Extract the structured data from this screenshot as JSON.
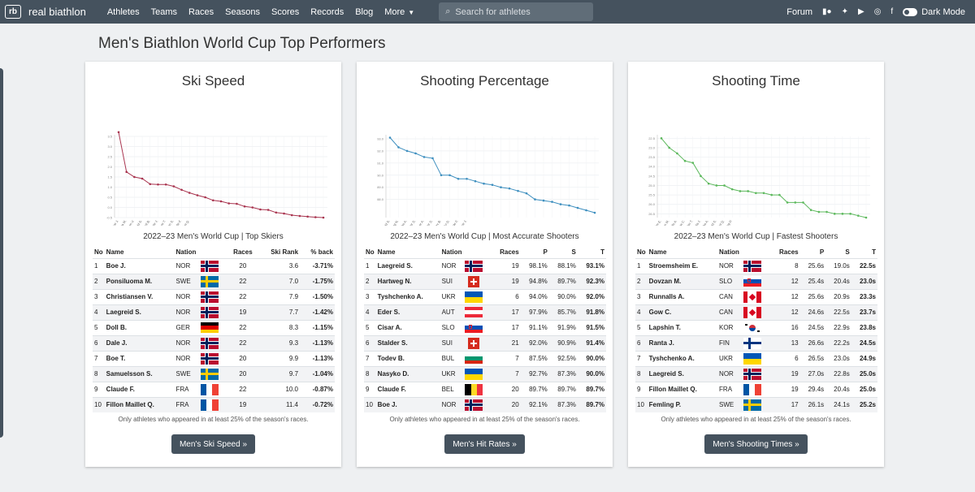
{
  "nav": {
    "logo": "rb",
    "brand": "real biathlon",
    "links": [
      "Athletes",
      "Teams",
      "Races",
      "Seasons",
      "Scores",
      "Records",
      "Blog"
    ],
    "more": "More",
    "search_placeholder": "Search for athletes",
    "forum": "Forum",
    "dark_mode": "Dark Mode"
  },
  "page_title": "Men's Biathlon World Cup Top Performers",
  "colors": {
    "nav": "#45525e",
    "ski": "#a8334e",
    "shoot": "#3e8fbf",
    "time": "#5cb85c"
  },
  "cards": [
    {
      "title": "Ski Speed",
      "table_title": "2022–23 Men's World Cup | Top Skiers",
      "columns": [
        "No",
        "Name",
        "Nation",
        "Races",
        "Ski Rank",
        "% back"
      ],
      "rows": [
        [
          "1",
          "Boe J.",
          "NOR",
          "20",
          "3.6",
          "-3.71%"
        ],
        [
          "2",
          "Ponsiluoma M.",
          "SWE",
          "22",
          "7.0",
          "-1.75%"
        ],
        [
          "3",
          "Christiansen V.",
          "NOR",
          "22",
          "7.9",
          "-1.50%"
        ],
        [
          "4",
          "Laegreid S.",
          "NOR",
          "19",
          "7.7",
          "-1.42%"
        ],
        [
          "5",
          "Doll B.",
          "GER",
          "22",
          "8.3",
          "-1.15%"
        ],
        [
          "6",
          "Dale J.",
          "NOR",
          "22",
          "9.3",
          "-1.13%"
        ],
        [
          "7",
          "Boe T.",
          "NOR",
          "20",
          "9.9",
          "-1.13%"
        ],
        [
          "8",
          "Samuelsson S.",
          "SWE",
          "20",
          "9.7",
          "-1.04%"
        ],
        [
          "9",
          "Claude F.",
          "FRA",
          "22",
          "10.0",
          "-0.87%"
        ],
        [
          "10",
          "Fillon Maillet Q.",
          "FRA",
          "19",
          "11.4",
          "-0.72%"
        ]
      ],
      "note": "Only athletes who appeared in at least 25% of the season's races.",
      "button": "Men's Ski Speed »",
      "chart_data": {
        "type": "line",
        "y_ticks": [
          "3.5",
          "3.0",
          "2.5",
          "2.0",
          "1.5",
          "1.0",
          "0.5",
          "0.0",
          "-0.5"
        ],
        "ylim": [
          -0.5,
          3.5
        ],
        "values": [
          3.71,
          1.75,
          1.5,
          1.42,
          1.15,
          1.13,
          1.13,
          1.04,
          0.87,
          0.72,
          0.6,
          0.5,
          0.35,
          0.3,
          0.2,
          0.18,
          0.05,
          0.0,
          -0.1,
          -0.12,
          -0.25,
          -0.3,
          -0.38,
          -0.42,
          -0.45,
          -0.48,
          -0.5
        ],
        "x_labels": [
          "Boe J.",
          "Ponsiluoma M.",
          "Christiansen V.",
          "Laegreid S.",
          "Doll B.",
          "Dale J.",
          "Boe T.",
          "Samuelsson S.",
          "Claude F.",
          "Fillon Maillet Q."
        ]
      }
    },
    {
      "title": "Shooting Percentage",
      "table_title": "2022–23 Men's World Cup | Most Accurate Shooters",
      "columns": [
        "No",
        "Name",
        "Nation",
        "Races",
        "P",
        "S",
        "T"
      ],
      "rows": [
        [
          "1",
          "Laegreid S.",
          "NOR",
          "19",
          "98.1%",
          "88.1%",
          "93.1%"
        ],
        [
          "2",
          "Hartweg N.",
          "SUI",
          "19",
          "94.8%",
          "89.7%",
          "92.3%"
        ],
        [
          "3",
          "Tyshchenko A.",
          "UKR",
          "6",
          "94.0%",
          "90.0%",
          "92.0%"
        ],
        [
          "4",
          "Eder S.",
          "AUT",
          "17",
          "97.9%",
          "85.7%",
          "91.8%"
        ],
        [
          "5",
          "Cisar A.",
          "SLO",
          "17",
          "91.1%",
          "91.9%",
          "91.5%"
        ],
        [
          "6",
          "Stalder S.",
          "SUI",
          "21",
          "92.0%",
          "90.9%",
          "91.4%"
        ],
        [
          "7",
          "Todev B.",
          "BUL",
          "7",
          "87.5%",
          "92.5%",
          "90.0%"
        ],
        [
          "8",
          "Nasyko D.",
          "UKR",
          "7",
          "92.7%",
          "87.3%",
          "90.0%"
        ],
        [
          "9",
          "Claude F.",
          "BEL",
          "20",
          "89.7%",
          "89.7%",
          "89.7%"
        ],
        [
          "10",
          "Boe J.",
          "NOR",
          "20",
          "92.1%",
          "87.3%",
          "89.7%"
        ]
      ],
      "note": "Only athletes who appeared in at least 25% of the season's races.",
      "button": "Men's Hit Rates »",
      "chart_data": {
        "type": "line",
        "y_ticks": [
          "93.0",
          "92.0",
          "91.0",
          "90.0",
          "89.0",
          "88.0"
        ],
        "ylim": [
          86.5,
          93.2
        ],
        "values": [
          93.1,
          92.3,
          92.0,
          91.8,
          91.5,
          91.4,
          90.0,
          90.0,
          89.7,
          89.7,
          89.5,
          89.3,
          89.2,
          89.0,
          88.9,
          88.7,
          88.5,
          88.0,
          87.9,
          87.8,
          87.6,
          87.5,
          87.3,
          87.1,
          86.9
        ],
        "x_labels": [
          "Laegreid S.",
          "Hartweg N.",
          "Tyshchenko A.",
          "Eder S.",
          "Cisar A.",
          "Stalder S.",
          "Todev B.",
          "Nasyko D.",
          "Claude F.",
          "Boe J."
        ]
      }
    },
    {
      "title": "Shooting Time",
      "table_title": "2022–23 Men's World Cup | Fastest Shooters",
      "columns": [
        "No",
        "Name",
        "Nation",
        "Races",
        "P",
        "S",
        "T"
      ],
      "rows": [
        [
          "1",
          "Stroemsheim E.",
          "NOR",
          "8",
          "25.6s",
          "19.0s",
          "22.5s"
        ],
        [
          "2",
          "Dovzan M.",
          "SLO",
          "12",
          "25.4s",
          "20.4s",
          "23.0s"
        ],
        [
          "3",
          "Runnalls A.",
          "CAN",
          "12",
          "25.6s",
          "20.9s",
          "23.3s"
        ],
        [
          "4",
          "Gow C.",
          "CAN",
          "12",
          "24.6s",
          "22.5s",
          "23.7s"
        ],
        [
          "5",
          "Lapshin T.",
          "KOR",
          "16",
          "24.5s",
          "22.9s",
          "23.8s"
        ],
        [
          "6",
          "Ranta J.",
          "FIN",
          "13",
          "26.6s",
          "22.2s",
          "24.5s"
        ],
        [
          "7",
          "Tyshchenko A.",
          "UKR",
          "6",
          "26.5s",
          "23.0s",
          "24.9s"
        ],
        [
          "8",
          "Laegreid S.",
          "NOR",
          "19",
          "27.0s",
          "22.8s",
          "25.0s"
        ],
        [
          "9",
          "Fillon Maillet Q.",
          "FRA",
          "19",
          "29.4s",
          "20.4s",
          "25.0s"
        ],
        [
          "10",
          "Femling P.",
          "SWE",
          "17",
          "26.1s",
          "24.1s",
          "25.2s"
        ]
      ],
      "note": "Only athletes who appeared in at least 25% of the season's races.",
      "button": "Men's Shooting Times »",
      "chart_data": {
        "type": "line",
        "y_ticks": [
          "22.5",
          "23.0",
          "23.5",
          "24.0",
          "24.5",
          "25.0",
          "25.5",
          "26.0",
          "26.5"
        ],
        "ylim": [
          22.4,
          26.7
        ],
        "reversed": true,
        "values": [
          22.5,
          23.0,
          23.3,
          23.7,
          23.8,
          24.5,
          24.9,
          25.0,
          25.0,
          25.2,
          25.3,
          25.3,
          25.4,
          25.4,
          25.5,
          25.5,
          25.9,
          25.9,
          25.9,
          26.3,
          26.4,
          26.4,
          26.5,
          26.5,
          26.5,
          26.6,
          26.7
        ],
        "x_labels": [
          "Stroemsheim E.",
          "Dovzan M.",
          "Runnalls A.",
          "Gow C.",
          "Lapshin T.",
          "Ranta J.",
          "Tyshchenko A.",
          "Laegreid S.",
          "Fillon Maillet Q.",
          "Femling P."
        ]
      }
    }
  ]
}
